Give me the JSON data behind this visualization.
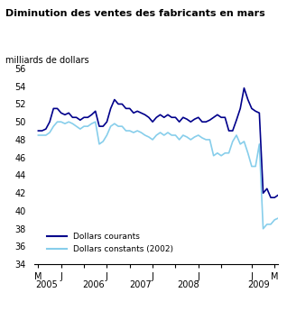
{
  "title": "Diminution des ventes des fabricants en mars",
  "ylabel": "milliards de dollars",
  "ylim": [
    34,
    56
  ],
  "yticks": [
    34,
    36,
    38,
    40,
    42,
    44,
    46,
    48,
    50,
    52,
    54,
    56
  ],
  "color_current": "#00008B",
  "color_constant": "#87CEEB",
  "legend_labels": [
    "Dollars courants",
    "Dollars constants (2002)"
  ],
  "dollars_courants": [
    49.0,
    49.0,
    49.2,
    50.0,
    51.5,
    51.5,
    51.0,
    50.8,
    51.0,
    50.5,
    50.5,
    50.2,
    50.5,
    50.5,
    50.8,
    51.2,
    49.5,
    49.5,
    50.0,
    51.5,
    52.5,
    52.0,
    52.0,
    51.5,
    51.5,
    51.0,
    51.2,
    51.0,
    50.8,
    50.5,
    50.0,
    50.5,
    50.8,
    50.5,
    50.8,
    50.5,
    50.5,
    50.0,
    50.5,
    50.3,
    50.0,
    50.3,
    50.5,
    50.0,
    50.0,
    50.2,
    50.5,
    50.8,
    50.5,
    50.5,
    49.0,
    49.0,
    50.2,
    51.5,
    53.8,
    52.5,
    51.5,
    51.2,
    51.0,
    42.0,
    42.5,
    41.5,
    41.5,
    41.8
  ],
  "dollars_constants": [
    48.5,
    48.5,
    48.5,
    48.8,
    49.5,
    50.0,
    50.0,
    49.8,
    50.0,
    49.8,
    49.5,
    49.2,
    49.5,
    49.5,
    49.8,
    50.0,
    47.5,
    47.8,
    48.5,
    49.5,
    49.8,
    49.5,
    49.5,
    49.0,
    49.0,
    48.8,
    49.0,
    48.8,
    48.5,
    48.3,
    48.0,
    48.5,
    48.8,
    48.5,
    48.8,
    48.5,
    48.5,
    48.0,
    48.5,
    48.3,
    48.0,
    48.3,
    48.5,
    48.2,
    48.0,
    48.0,
    46.2,
    46.5,
    46.2,
    46.5,
    46.5,
    47.8,
    48.5,
    47.5,
    47.8,
    46.5,
    45.0,
    45.0,
    47.5,
    38.0,
    38.5,
    38.5,
    39.0,
    39.2
  ],
  "xtick_labels": [
    "M",
    "J",
    "J",
    "J",
    "J",
    "J",
    "M"
  ],
  "year_labels": [
    "2005",
    "2006",
    "2007",
    "2008",
    "2009"
  ],
  "n_points": 64
}
